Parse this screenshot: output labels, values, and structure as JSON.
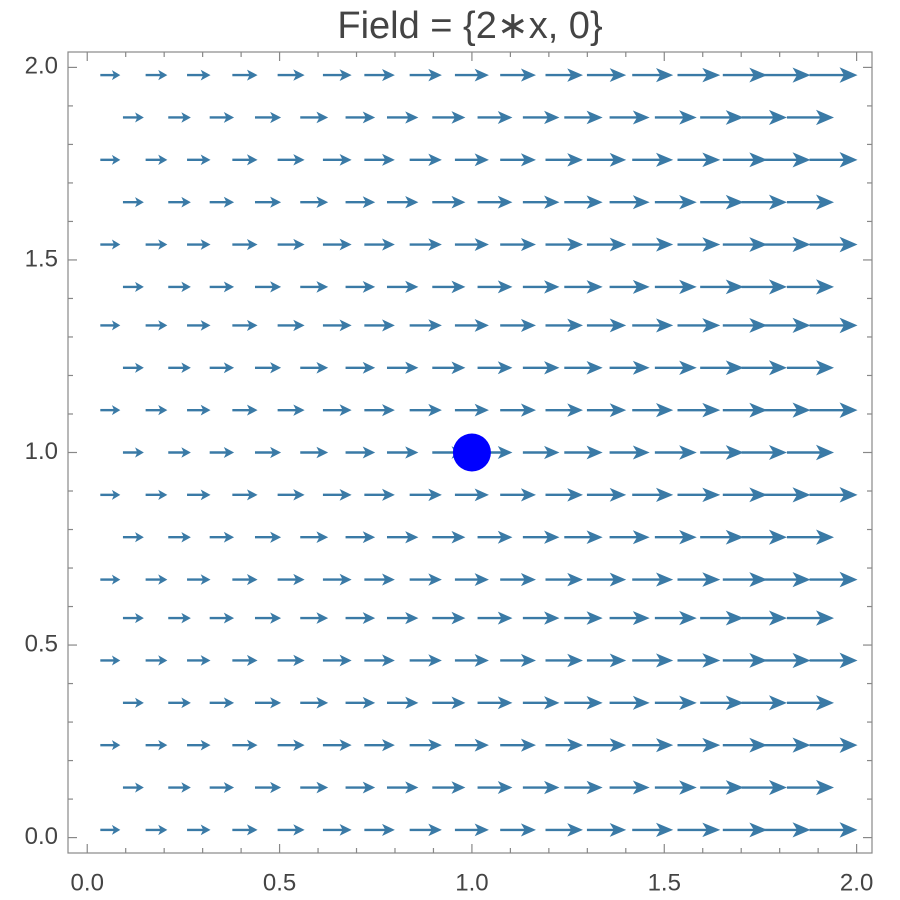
{
  "chart_data": {
    "type": "vector_field",
    "title": "Field = {2∗x, 0}",
    "color": "#3a7aa6",
    "xlim": [
      -0.05,
      2.04
    ],
    "ylim": [
      -0.04,
      2.04
    ],
    "xticks": [
      {
        "value": 0,
        "label": "0.0"
      },
      0.5,
      {
        "value": 1,
        "label": "1.0"
      },
      1.5,
      {
        "value": 2,
        "label": "2.0"
      }
    ],
    "yticks": [
      {
        "value": 0,
        "label": "0.0"
      },
      0.5,
      {
        "value": 1,
        "label": "1.0"
      },
      1.5,
      {
        "value": 2,
        "label": "2.0"
      }
    ],
    "minor_ticks": [
      0.1,
      0.2,
      0.3,
      0.4,
      0.6,
      0.7,
      0.8,
      0.9,
      1.1,
      1.2,
      1.3,
      1.4,
      1.6,
      1.7,
      1.8,
      1.9
    ],
    "rows": [
      {
        "y": 0.02,
        "x": [
          0.06,
          0.18,
          0.29,
          0.41,
          0.53,
          0.65,
          0.76,
          0.88,
          1.0,
          1.12,
          1.24,
          1.35,
          1.47,
          1.59,
          1.71,
          1.82,
          1.94
        ],
        "u": [
          0.12,
          0.35,
          0.59,
          0.82,
          1.06,
          1.29,
          1.53,
          1.76,
          2.0,
          2.24,
          2.47,
          2.71,
          2.94,
          3.18,
          3.41,
          3.65,
          3.88
        ]
      },
      {
        "y": 0.13,
        "x": [
          0.12,
          0.24,
          0.35,
          0.47,
          0.59,
          0.71,
          0.82,
          0.94,
          1.06,
          1.18,
          1.29,
          1.41,
          1.53,
          1.65,
          1.76,
          1.88
        ],
        "u": [
          0.24,
          0.47,
          0.71,
          0.94,
          1.18,
          1.41,
          1.65,
          1.88,
          2.12,
          2.35,
          2.59,
          2.82,
          3.06,
          3.29,
          3.53,
          3.76
        ]
      },
      {
        "y": 0.24,
        "x": [
          0.06,
          0.18,
          0.29,
          0.41,
          0.53,
          0.65,
          0.76,
          0.88,
          1.0,
          1.12,
          1.24,
          1.35,
          1.47,
          1.59,
          1.71,
          1.82,
          1.94
        ],
        "u": [
          0.12,
          0.35,
          0.59,
          0.82,
          1.06,
          1.29,
          1.53,
          1.76,
          2.0,
          2.24,
          2.47,
          2.71,
          2.94,
          3.18,
          3.41,
          3.65,
          3.88
        ]
      },
      {
        "y": 0.35,
        "x": [
          0.12,
          0.24,
          0.35,
          0.47,
          0.59,
          0.71,
          0.82,
          0.94,
          1.06,
          1.18,
          1.29,
          1.41,
          1.53,
          1.65,
          1.76,
          1.88
        ],
        "u": [
          0.24,
          0.47,
          0.71,
          0.94,
          1.18,
          1.41,
          1.65,
          1.88,
          2.12,
          2.35,
          2.59,
          2.82,
          3.06,
          3.29,
          3.53,
          3.76
        ]
      },
      {
        "y": 0.46,
        "x": [
          0.06,
          0.18,
          0.29,
          0.41,
          0.53,
          0.65,
          0.76,
          0.88,
          1.0,
          1.12,
          1.24,
          1.35,
          1.47,
          1.59,
          1.71,
          1.82,
          1.94
        ],
        "u": [
          0.12,
          0.35,
          0.59,
          0.82,
          1.06,
          1.29,
          1.53,
          1.76,
          2.0,
          2.24,
          2.47,
          2.71,
          2.94,
          3.18,
          3.41,
          3.65,
          3.88
        ]
      },
      {
        "y": 0.57,
        "x": [
          0.12,
          0.24,
          0.35,
          0.47,
          0.59,
          0.71,
          0.82,
          0.94,
          1.06,
          1.18,
          1.29,
          1.41,
          1.53,
          1.65,
          1.76,
          1.88
        ],
        "u": [
          0.24,
          0.47,
          0.71,
          0.94,
          1.18,
          1.41,
          1.65,
          1.88,
          2.12,
          2.35,
          2.59,
          2.82,
          3.06,
          3.29,
          3.53,
          3.76
        ]
      },
      {
        "y": 0.67,
        "x": [
          0.06,
          0.18,
          0.29,
          0.41,
          0.53,
          0.65,
          0.76,
          0.88,
          1.0,
          1.12,
          1.24,
          1.35,
          1.47,
          1.59,
          1.71,
          1.82,
          1.94
        ],
        "u": [
          0.12,
          0.35,
          0.59,
          0.82,
          1.06,
          1.29,
          1.53,
          1.76,
          2.0,
          2.24,
          2.47,
          2.71,
          2.94,
          3.18,
          3.41,
          3.65,
          3.88
        ]
      },
      {
        "y": 0.78,
        "x": [
          0.12,
          0.24,
          0.35,
          0.47,
          0.59,
          0.71,
          0.82,
          0.94,
          1.06,
          1.18,
          1.29,
          1.41,
          1.53,
          1.65,
          1.76,
          1.88
        ],
        "u": [
          0.24,
          0.47,
          0.71,
          0.94,
          1.18,
          1.41,
          1.65,
          1.88,
          2.12,
          2.35,
          2.59,
          2.82,
          3.06,
          3.29,
          3.53,
          3.76
        ]
      },
      {
        "y": 0.89,
        "x": [
          0.06,
          0.18,
          0.29,
          0.41,
          0.53,
          0.65,
          0.76,
          0.88,
          1.0,
          1.12,
          1.24,
          1.35,
          1.47,
          1.59,
          1.71,
          1.82,
          1.94
        ],
        "u": [
          0.12,
          0.35,
          0.59,
          0.82,
          1.06,
          1.29,
          1.53,
          1.76,
          2.0,
          2.24,
          2.47,
          2.71,
          2.94,
          3.18,
          3.41,
          3.65,
          3.88
        ]
      },
      {
        "y": 1.0,
        "x": [
          0.12,
          0.24,
          0.35,
          0.47,
          0.59,
          0.71,
          0.82,
          0.94,
          1.06,
          1.18,
          1.29,
          1.41,
          1.53,
          1.65,
          1.76,
          1.88
        ],
        "u": [
          0.24,
          0.47,
          0.71,
          0.94,
          1.18,
          1.41,
          1.65,
          1.88,
          2.12,
          2.35,
          2.59,
          2.82,
          3.06,
          3.29,
          3.53,
          3.76
        ]
      },
      {
        "y": 1.11,
        "x": [
          0.06,
          0.18,
          0.29,
          0.41,
          0.53,
          0.65,
          0.76,
          0.88,
          1.0,
          1.12,
          1.24,
          1.35,
          1.47,
          1.59,
          1.71,
          1.82,
          1.94
        ],
        "u": [
          0.12,
          0.35,
          0.59,
          0.82,
          1.06,
          1.29,
          1.53,
          1.76,
          2.0,
          2.24,
          2.47,
          2.71,
          2.94,
          3.18,
          3.41,
          3.65,
          3.88
        ]
      },
      {
        "y": 1.22,
        "x": [
          0.12,
          0.24,
          0.35,
          0.47,
          0.59,
          0.71,
          0.82,
          0.94,
          1.06,
          1.18,
          1.29,
          1.41,
          1.53,
          1.65,
          1.76,
          1.88
        ],
        "u": [
          0.24,
          0.47,
          0.71,
          0.94,
          1.18,
          1.41,
          1.65,
          1.88,
          2.12,
          2.35,
          2.59,
          2.82,
          3.06,
          3.29,
          3.53,
          3.76
        ]
      },
      {
        "y": 1.33,
        "x": [
          0.06,
          0.18,
          0.29,
          0.41,
          0.53,
          0.65,
          0.76,
          0.88,
          1.0,
          1.12,
          1.24,
          1.35,
          1.47,
          1.59,
          1.71,
          1.82,
          1.94
        ],
        "u": [
          0.12,
          0.35,
          0.59,
          0.82,
          1.06,
          1.29,
          1.53,
          1.76,
          2.0,
          2.24,
          2.47,
          2.71,
          2.94,
          3.18,
          3.41,
          3.65,
          3.88
        ]
      },
      {
        "y": 1.43,
        "x": [
          0.12,
          0.24,
          0.35,
          0.47,
          0.59,
          0.71,
          0.82,
          0.94,
          1.06,
          1.18,
          1.29,
          1.41,
          1.53,
          1.65,
          1.76,
          1.88
        ],
        "u": [
          0.24,
          0.47,
          0.71,
          0.94,
          1.18,
          1.41,
          1.65,
          1.88,
          2.12,
          2.35,
          2.59,
          2.82,
          3.06,
          3.29,
          3.53,
          3.76
        ]
      },
      {
        "y": 1.54,
        "x": [
          0.06,
          0.18,
          0.29,
          0.41,
          0.53,
          0.65,
          0.76,
          0.88,
          1.0,
          1.12,
          1.24,
          1.35,
          1.47,
          1.59,
          1.71,
          1.82,
          1.94
        ],
        "u": [
          0.12,
          0.35,
          0.59,
          0.82,
          1.06,
          1.29,
          1.53,
          1.76,
          2.0,
          2.24,
          2.47,
          2.71,
          2.94,
          3.18,
          3.41,
          3.65,
          3.88
        ]
      },
      {
        "y": 1.65,
        "x": [
          0.12,
          0.24,
          0.35,
          0.47,
          0.59,
          0.71,
          0.82,
          0.94,
          1.06,
          1.18,
          1.29,
          1.41,
          1.53,
          1.65,
          1.76,
          1.88
        ],
        "u": [
          0.24,
          0.47,
          0.71,
          0.94,
          1.18,
          1.41,
          1.65,
          1.88,
          2.12,
          2.35,
          2.59,
          2.82,
          3.06,
          3.29,
          3.53,
          3.76
        ]
      },
      {
        "y": 1.76,
        "x": [
          0.06,
          0.18,
          0.29,
          0.41,
          0.53,
          0.65,
          0.76,
          0.88,
          1.0,
          1.12,
          1.24,
          1.35,
          1.47,
          1.59,
          1.71,
          1.82,
          1.94
        ],
        "u": [
          0.12,
          0.35,
          0.59,
          0.82,
          1.06,
          1.29,
          1.53,
          1.76,
          2.0,
          2.24,
          2.47,
          2.71,
          2.94,
          3.18,
          3.41,
          3.65,
          3.88
        ]
      },
      {
        "y": 1.87,
        "x": [
          0.12,
          0.24,
          0.35,
          0.47,
          0.59,
          0.71,
          0.82,
          0.94,
          1.06,
          1.18,
          1.29,
          1.41,
          1.53,
          1.65,
          1.76,
          1.88
        ],
        "u": [
          0.24,
          0.47,
          0.71,
          0.94,
          1.18,
          1.41,
          1.65,
          1.88,
          2.12,
          2.35,
          2.59,
          2.82,
          3.06,
          3.29,
          3.53,
          3.76
        ]
      },
      {
        "y": 1.98,
        "x": [
          0.06,
          0.18,
          0.29,
          0.41,
          0.53,
          0.65,
          0.76,
          0.88,
          1.0,
          1.12,
          1.24,
          1.35,
          1.47,
          1.59,
          1.71,
          1.82,
          1.94
        ],
        "u": [
          0.12,
          0.35,
          0.59,
          0.82,
          1.06,
          1.29,
          1.53,
          1.76,
          2.0,
          2.24,
          2.47,
          2.71,
          2.94,
          3.18,
          3.41,
          3.65,
          3.88
        ]
      }
    ],
    "point": {
      "x": 1,
      "y": 1,
      "color": "#0000ff"
    }
  }
}
